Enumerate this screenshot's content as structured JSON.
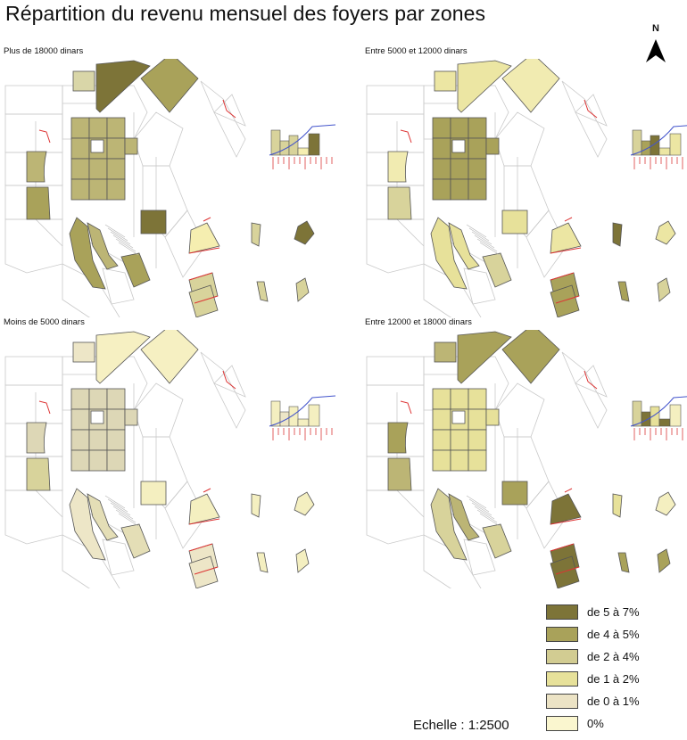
{
  "title": "Répartition du revenu mensuel des foyers par zones",
  "north_label": "N",
  "panels": [
    {
      "id": "p1",
      "title": "Plus de 18000 dinars",
      "fills": {
        "main": "#bcb575",
        "sq1": "#d9d6a8",
        "tri": "#7d7438",
        "ne": "#a9a25a",
        "left1": "#bcb575",
        "left2": "#a9a25a",
        "grid": "#bcb575",
        "s1": "#a9a25a",
        "s2": "#bcb575",
        "s3": "#a9a25a",
        "dark": "#7d7438",
        "b1": "#f5eeb0",
        "b2": "#d8d39b",
        "b3": "#7d7438",
        "b4": "#d8d39b",
        "b5": "#d8d39b",
        "b6": "#d8d39b",
        "b7": "#d8d39b"
      }
    },
    {
      "id": "p2",
      "title": "Entre 5000 et 12000 dinars",
      "fills": {
        "main": "#a9a25a",
        "sq1": "#ece6a3",
        "tri": "#ece6a3",
        "ne": "#f1ebb1",
        "left1": "#f1ebb1",
        "left2": "#d8d39b",
        "grid": "#a9a25a",
        "s1": "#e7e19a",
        "s2": "#e7e19a",
        "s3": "#d8d39b",
        "dark": "#e7e19a",
        "b1": "#ece6a3",
        "b2": "#7d7438",
        "b3": "#ece6a3",
        "b4": "#a9a25a",
        "b5": "#a9a25a",
        "b6": "#d8d39b",
        "b7": "#d8d39b"
      }
    },
    {
      "id": "p3",
      "title": "Moins de 5000 dinars",
      "fills": {
        "main": "#ddd7b6",
        "sq1": "#ede6c7",
        "tri": "#f6f0c2",
        "ne": "#f6f0c2",
        "left1": "#ddd7b6",
        "left2": "#d8d39b",
        "grid": "#ddd7b6",
        "s1": "#ede6c7",
        "s2": "#e4deb6",
        "s3": "#e4deb6",
        "dark": "#f4efc0",
        "b1": "#f4efc0",
        "b2": "#f4efc0",
        "b3": "#f4efc0",
        "b4": "#ede6c7",
        "b5": "#f4efc0",
        "b6": "#f4efc0",
        "b7": "#f4efc0"
      }
    },
    {
      "id": "p4",
      "title": "Entre 12000 et 18000 dinars",
      "fills": {
        "main": "#e7e19a",
        "sq1": "#bcb575",
        "tri": "#a9a25a",
        "ne": "#a9a25a",
        "left1": "#a9a25a",
        "left2": "#bcb575",
        "grid": "#e7e19a",
        "s1": "#d8d39b",
        "s2": "#bcb575",
        "s3": "#d8d39b",
        "dark": "#a9a25a",
        "b1": "#7d7438",
        "b2": "#e7e19a",
        "b3": "#f4efc0",
        "b4": "#7d7438",
        "b5": "#a9a25a",
        "b6": "#a9a25a",
        "b7": "#d8d39b"
      }
    }
  ],
  "legend": [
    {
      "label": "de 5 à 7%",
      "color": "#7d7438"
    },
    {
      "label": "de 4 à 5%",
      "color": "#a9a25a"
    },
    {
      "label": "de 2 à 4%",
      "color": "#d2cc92"
    },
    {
      "label": "de 1 à 2%",
      "color": "#e7e19a"
    },
    {
      "label": "de 0 à 1%",
      "color": "#ece3c5"
    },
    {
      "label": "0%",
      "color": "#faf6cf"
    }
  ],
  "scale_label": "Echelle : 1:2500"
}
